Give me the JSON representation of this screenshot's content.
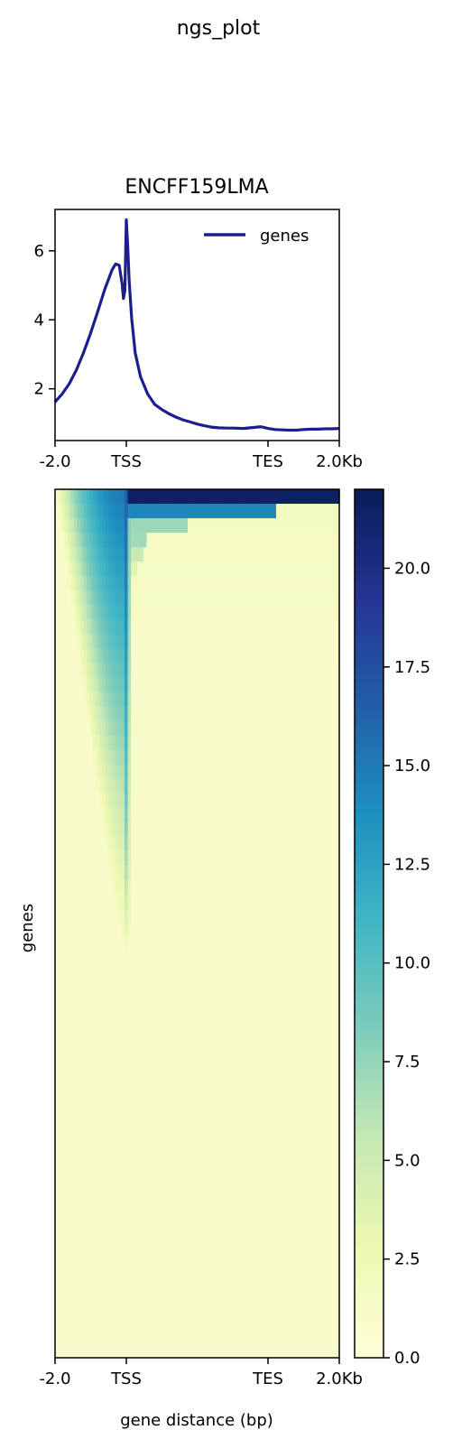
{
  "figure_title": "ngs_plot",
  "colors": {
    "profile_line": "#1b1e8c",
    "colormap": [
      "#ffffd9",
      "#edf8b1",
      "#c7e9b4",
      "#7fcdbb",
      "#41b6c4",
      "#1d91c0",
      "#225ea8",
      "#253494",
      "#081d58"
    ]
  },
  "chart_data": [
    {
      "type": "line",
      "title": "ENCFF159LMA",
      "xlabel": "",
      "ylabel": "",
      "x_ticks": [
        "-2.0",
        "TSS",
        "TES",
        "2.0Kb"
      ],
      "y_ticks": [
        2,
        4,
        6
      ],
      "ylim": [
        0.5,
        7.2
      ],
      "x_axis_note": "scaled gene body: -2.0 kb upstream, TSS, TES, +2.0 kb downstream",
      "legend": {
        "location": "upper-right",
        "entries": [
          "genes"
        ]
      },
      "series": [
        {
          "name": "genes",
          "x": [
            -2000,
            -1800,
            -1600,
            -1400,
            -1200,
            -1000,
            -800,
            -600,
            -400,
            -300,
            -200,
            -120,
            -80,
            -40,
            0,
            40,
            80,
            150,
            250,
            400,
            600,
            800,
            1000,
            1200,
            1400,
            1600,
            1800,
            2000,
            2200,
            2400,
            2600,
            2800,
            3000,
            3300,
            3600,
            3800,
            4000,
            4200,
            4400,
            4600,
            4800,
            5000,
            5200,
            5400,
            5600,
            5800,
            6000
          ],
          "y": [
            1.62,
            1.85,
            2.15,
            2.55,
            3.05,
            3.62,
            4.25,
            4.9,
            5.45,
            5.62,
            5.58,
            5.05,
            4.62,
            4.85,
            6.9,
            6.1,
            5.15,
            4.05,
            3.05,
            2.35,
            1.85,
            1.55,
            1.4,
            1.28,
            1.18,
            1.1,
            1.04,
            0.98,
            0.93,
            0.89,
            0.87,
            0.86,
            0.86,
            0.85,
            0.88,
            0.9,
            0.85,
            0.82,
            0.81,
            0.8,
            0.8,
            0.82,
            0.83,
            0.83,
            0.84,
            0.84,
            0.85
          ]
        }
      ]
    },
    {
      "type": "heatmap",
      "xlabel": "gene distance (bp)",
      "ylabel": "genes",
      "x_ticks": [
        "-2.0",
        "TSS",
        "TES",
        "2.0Kb"
      ],
      "rows": 60,
      "colorbar": {
        "min": 0.0,
        "max": 22.0,
        "ticks": [
          "0.0",
          "2.5",
          "5.0",
          "7.5",
          "10.0",
          "12.5",
          "15.0",
          "17.5",
          "20.0"
        ]
      },
      "row_sort": "descending by mean signal",
      "profile_description": {
        "tss_peak_max": 17.0,
        "upstream_spread_max": 15.0,
        "gene_body_max": 21.5,
        "background": 1.0,
        "signal_ends_at_row_fraction": 0.52
      }
    }
  ]
}
